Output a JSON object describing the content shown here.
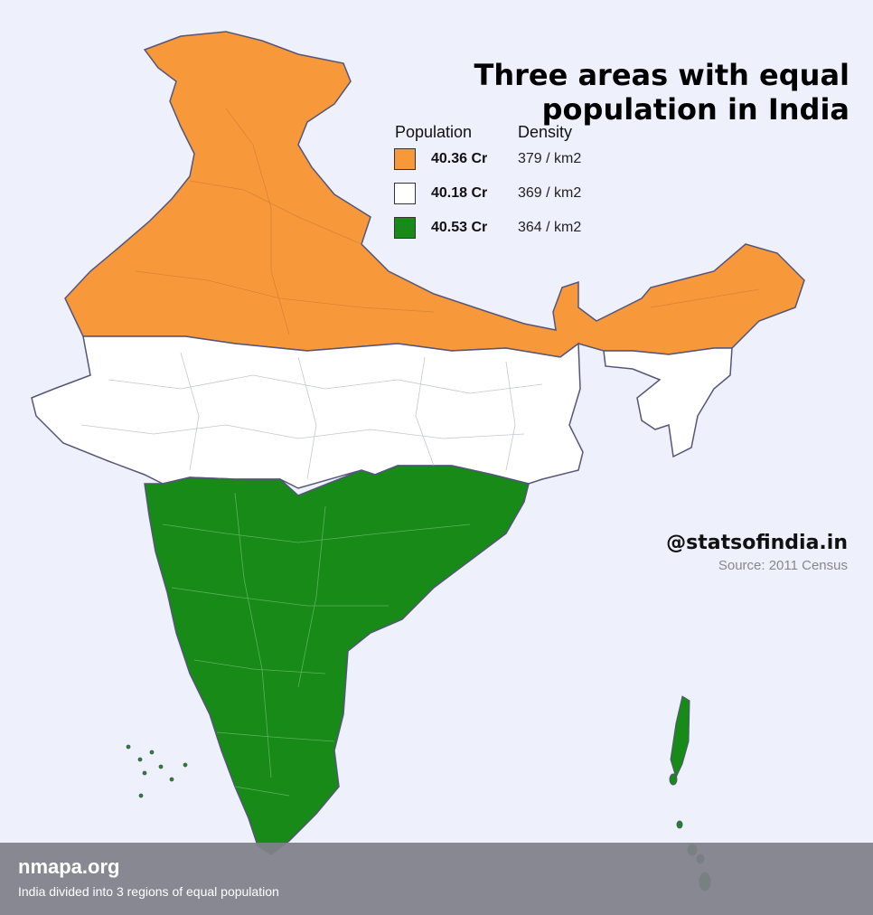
{
  "map": {
    "title": "Three areas with equal population in India",
    "legend": {
      "population_header": "Population",
      "density_header": "Density",
      "items": [
        {
          "population": "40.36 Cr",
          "density": "379 / km2",
          "color": "#f7993b"
        },
        {
          "population": "40.18 Cr",
          "density": "369 / km2",
          "color": "#ffffff"
        },
        {
          "population": "40.53 Cr",
          "density": "364 / km2",
          "color": "#178a17"
        }
      ]
    },
    "credit": "@statsofindia.in",
    "source": "Source: 2011 Census",
    "colors": {
      "background": "#eef0fb",
      "border": "#55557a",
      "district_line": "#c9c9d2"
    }
  },
  "footer": {
    "brand": "nmapa.org",
    "caption": "India divided into 3 regions of equal population"
  }
}
